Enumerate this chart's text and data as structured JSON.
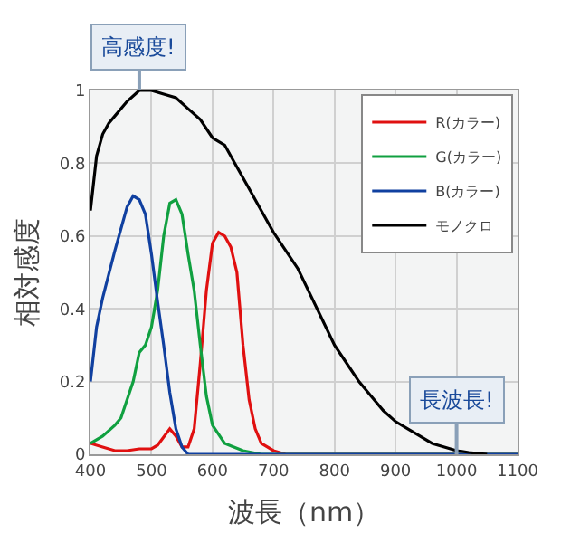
{
  "chart_data": {
    "type": "line",
    "xlabel": "波長（nm）",
    "ylabel": "相対感度",
    "xlim": [
      400,
      1100
    ],
    "xticks": [
      400,
      500,
      600,
      700,
      800,
      900,
      1000,
      1100
    ],
    "ylim": [
      0,
      1
    ],
    "yticks": [
      0,
      0.2,
      0.4,
      0.6,
      0.8,
      1
    ],
    "grid": true,
    "legend": "top right",
    "marker": "none",
    "line_style": "solid",
    "annotations": [
      {
        "text": "高感度!",
        "x": 480,
        "y": 1.0
      },
      {
        "text": "長波長!",
        "x": 1000,
        "y": 0
      }
    ],
    "series": [
      {
        "name": "R(カラー)",
        "color": "#e01010",
        "x": [
          400,
          420,
          440,
          460,
          480,
          500,
          510,
          530,
          540,
          550,
          560,
          570,
          580,
          590,
          600,
          610,
          620,
          630,
          640,
          650,
          660,
          670,
          680,
          700,
          720,
          1100
        ],
        "values": [
          0.03,
          0.02,
          0.01,
          0.01,
          0.015,
          0.015,
          0.025,
          0.07,
          0.05,
          0.02,
          0.02,
          0.07,
          0.25,
          0.45,
          0.58,
          0.61,
          0.6,
          0.57,
          0.5,
          0.3,
          0.15,
          0.07,
          0.03,
          0.01,
          0,
          0
        ]
      },
      {
        "name": "G(カラー)",
        "color": "#10a040",
        "x": [
          400,
          420,
          440,
          450,
          470,
          480,
          490,
          500,
          510,
          520,
          530,
          540,
          550,
          560,
          570,
          580,
          590,
          600,
          620,
          650,
          680,
          1100
        ],
        "values": [
          0.03,
          0.05,
          0.08,
          0.1,
          0.2,
          0.28,
          0.3,
          0.35,
          0.45,
          0.6,
          0.69,
          0.7,
          0.66,
          0.55,
          0.45,
          0.3,
          0.16,
          0.08,
          0.03,
          0.01,
          0,
          0
        ]
      },
      {
        "name": "B(カラー)",
        "color": "#1040a0",
        "x": [
          400,
          410,
          420,
          440,
          460,
          470,
          480,
          490,
          500,
          510,
          520,
          530,
          540,
          550,
          560,
          1100
        ],
        "values": [
          0.2,
          0.35,
          0.43,
          0.56,
          0.68,
          0.71,
          0.7,
          0.66,
          0.55,
          0.42,
          0.3,
          0.17,
          0.07,
          0.02,
          0,
          0
        ]
      },
      {
        "name": "モノクロ",
        "color": "#000000",
        "x": [
          400,
          410,
          420,
          430,
          440,
          460,
          480,
          500,
          520,
          540,
          560,
          580,
          600,
          620,
          640,
          660,
          680,
          700,
          720,
          740,
          760,
          780,
          800,
          820,
          840,
          860,
          880,
          900,
          920,
          940,
          960,
          980,
          1000,
          1020,
          1050
        ],
        "values": [
          0.67,
          0.82,
          0.88,
          0.91,
          0.93,
          0.97,
          1.0,
          1.0,
          0.99,
          0.98,
          0.95,
          0.92,
          0.87,
          0.85,
          0.79,
          0.73,
          0.67,
          0.61,
          0.56,
          0.51,
          0.44,
          0.37,
          0.3,
          0.25,
          0.2,
          0.16,
          0.12,
          0.09,
          0.07,
          0.05,
          0.03,
          0.02,
          0.01,
          0.005,
          0
        ]
      }
    ]
  }
}
